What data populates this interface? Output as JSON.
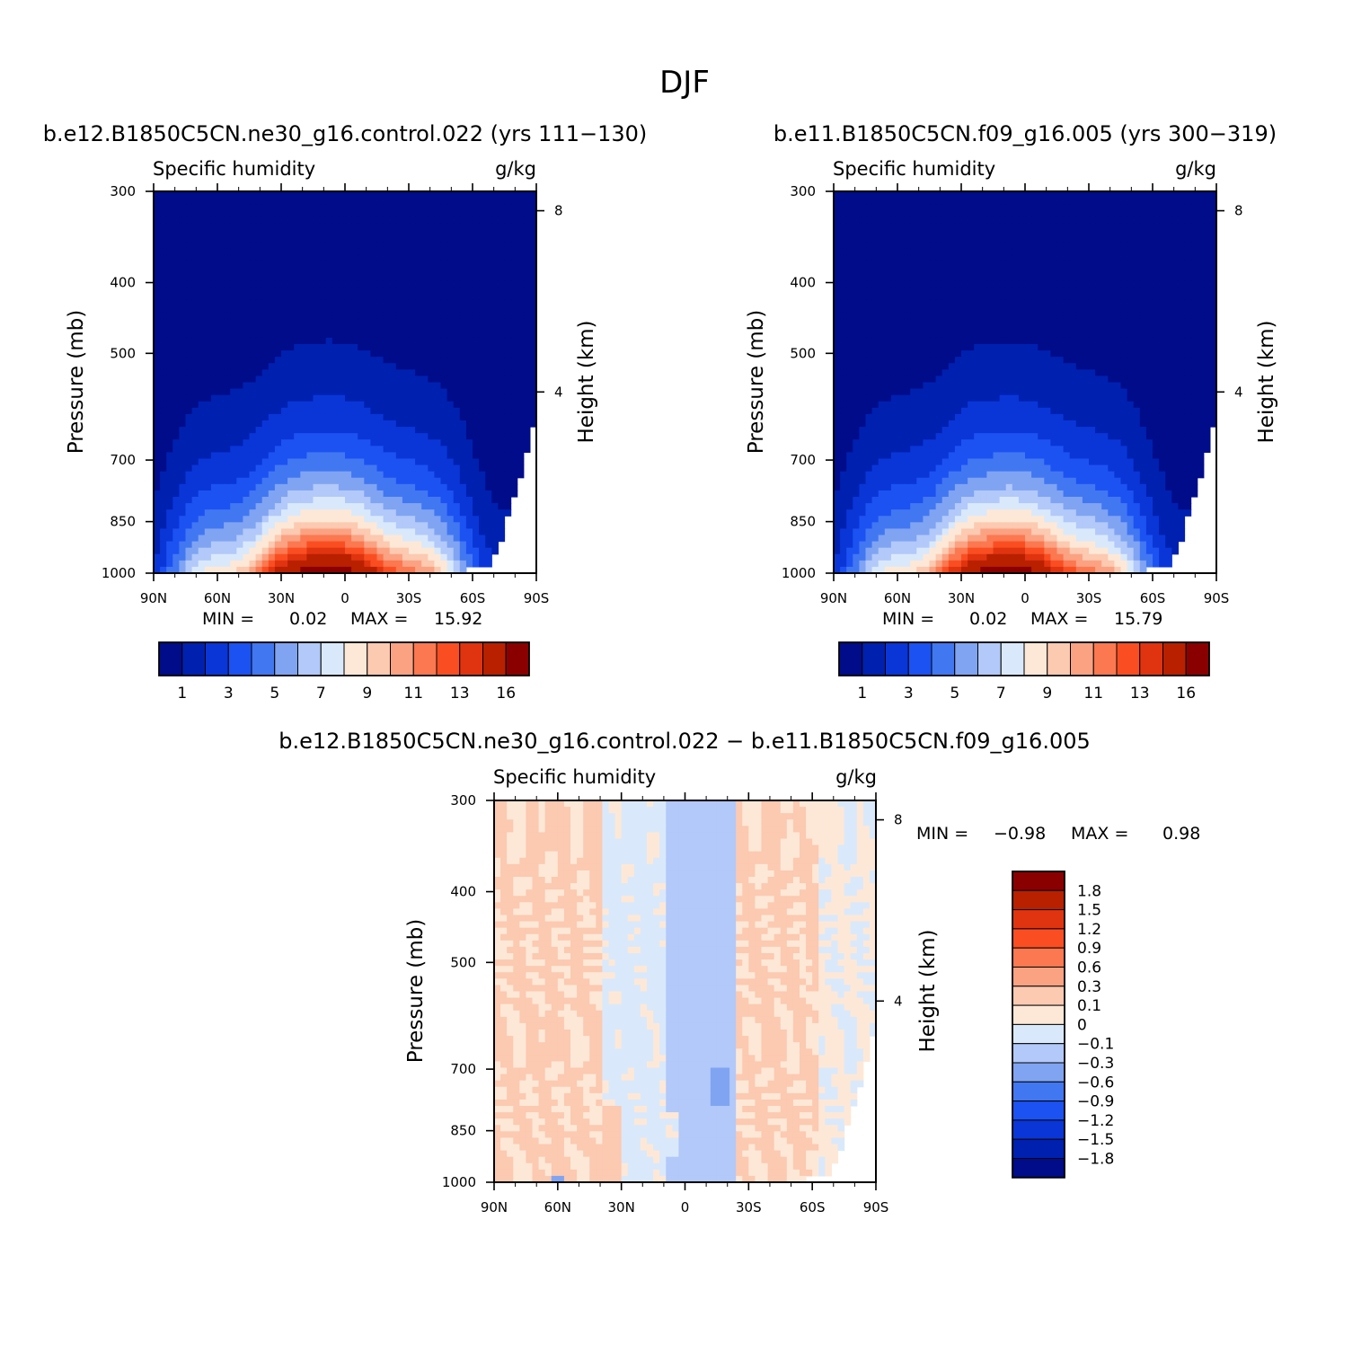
{
  "title": "DJF",
  "chart_data": [
    {
      "type": "contour",
      "panel": "top-left",
      "title": "b.e12.B1850C5CN.ne30_g16.control.022 (yrs 111-130)",
      "left_subtitle": "Specific humidity",
      "right_subtitle": "g/kg",
      "xlabel": "",
      "ylabel": "Pressure (mb)",
      "y2label": "Height (km)",
      "x_ticks": [
        "90N",
        "60N",
        "30N",
        "0",
        "30S",
        "60S",
        "90S"
      ],
      "y_ticks": [
        "300",
        "400",
        "500",
        "700",
        "850",
        "1000"
      ],
      "y2_ticks": [
        "8",
        "4"
      ],
      "ylim": [
        1000,
        300
      ],
      "min_label": "MIN =",
      "min_value": "0.02",
      "max_label": "MAX =",
      "max_value": "15.92",
      "peak": {
        "lat": 8,
        "p": 960,
        "value": 15.92
      },
      "levels": [
        1,
        2,
        3,
        4,
        5,
        6,
        7,
        8,
        9,
        10,
        11,
        12,
        13,
        14,
        16
      ],
      "colorbar_labels": [
        "1",
        "3",
        "5",
        "7",
        "9",
        "11",
        "13",
        "16"
      ]
    },
    {
      "type": "contour",
      "panel": "top-right",
      "title": "b.e11.B1850C5CN.f09_g16.005 (yrs 300-319)",
      "left_subtitle": "Specific humidity",
      "right_subtitle": "g/kg",
      "xlabel": "",
      "ylabel": "Pressure (mb)",
      "y2label": "Height (km)",
      "x_ticks": [
        "90N",
        "60N",
        "30N",
        "0",
        "30S",
        "60S",
        "90S"
      ],
      "y_ticks": [
        "300",
        "400",
        "500",
        "700",
        "850",
        "1000"
      ],
      "y2_ticks": [
        "8",
        "4"
      ],
      "ylim": [
        1000,
        300
      ],
      "min_label": "MIN =",
      "min_value": "0.02",
      "max_label": "MAX =",
      "max_value": "15.79",
      "peak": {
        "lat": 8,
        "p": 960,
        "value": 15.79
      },
      "levels": [
        1,
        2,
        3,
        4,
        5,
        6,
        7,
        8,
        9,
        10,
        11,
        12,
        13,
        14,
        16
      ],
      "colorbar_labels": [
        "1",
        "3",
        "5",
        "7",
        "9",
        "11",
        "13",
        "16"
      ]
    },
    {
      "type": "contour",
      "panel": "bottom-difference",
      "title": "b.e12.B1850C5CN.ne30_g16.control.022 - b.e11.B1850C5CN.f09_g16.005",
      "left_subtitle": "Specific humidity",
      "right_subtitle": "g/kg",
      "xlabel": "",
      "ylabel": "Pressure (mb)",
      "y2label": "Height (km)",
      "x_ticks": [
        "90N",
        "60N",
        "30N",
        "0",
        "30S",
        "60S",
        "90S"
      ],
      "y_ticks": [
        "300",
        "400",
        "500",
        "700",
        "850",
        "1000"
      ],
      "y2_ticks": [
        "8",
        "4"
      ],
      "ylim": [
        1000,
        300
      ],
      "min_label": "MIN =",
      "min_value": "-0.98",
      "max_label": "MAX =",
      "max_value": "0.98",
      "levels": [
        -1.8,
        -1.5,
        -1.2,
        -0.9,
        -0.6,
        -0.3,
        -0.1,
        0,
        0.1,
        0.3,
        0.6,
        0.9,
        1.2,
        1.5,
        1.8
      ],
      "colorbar_labels": [
        "1.8",
        "1.5",
        "1.2",
        "0.9",
        "0.6",
        "0.3",
        "0.1",
        "0",
        "-0.1",
        "-0.3",
        "-0.6",
        "-0.9",
        "-1.2",
        "-1.5",
        "-1.8"
      ]
    }
  ],
  "colors": {
    "sequential": [
      "#000c8a",
      "#0020b0",
      "#0a36d8",
      "#1c52f2",
      "#4277f2",
      "#80a4f2",
      "#b2c9f9",
      "#d9e9fb",
      "#fde8d7",
      "#fcc9b1",
      "#fba283",
      "#fb7850",
      "#fa4e22",
      "#e03410",
      "#b82000",
      "#8a0000"
    ],
    "diverging": [
      "#000c8a",
      "#0020b0",
      "#0a36d8",
      "#1c52f2",
      "#4277f2",
      "#80a4f2",
      "#b2c9f9",
      "#d9e9fb",
      "#fde8d7",
      "#fcc9b1",
      "#fba283",
      "#fb7850",
      "#fa4e22",
      "#e03410",
      "#b82000",
      "#8a0000"
    ]
  }
}
